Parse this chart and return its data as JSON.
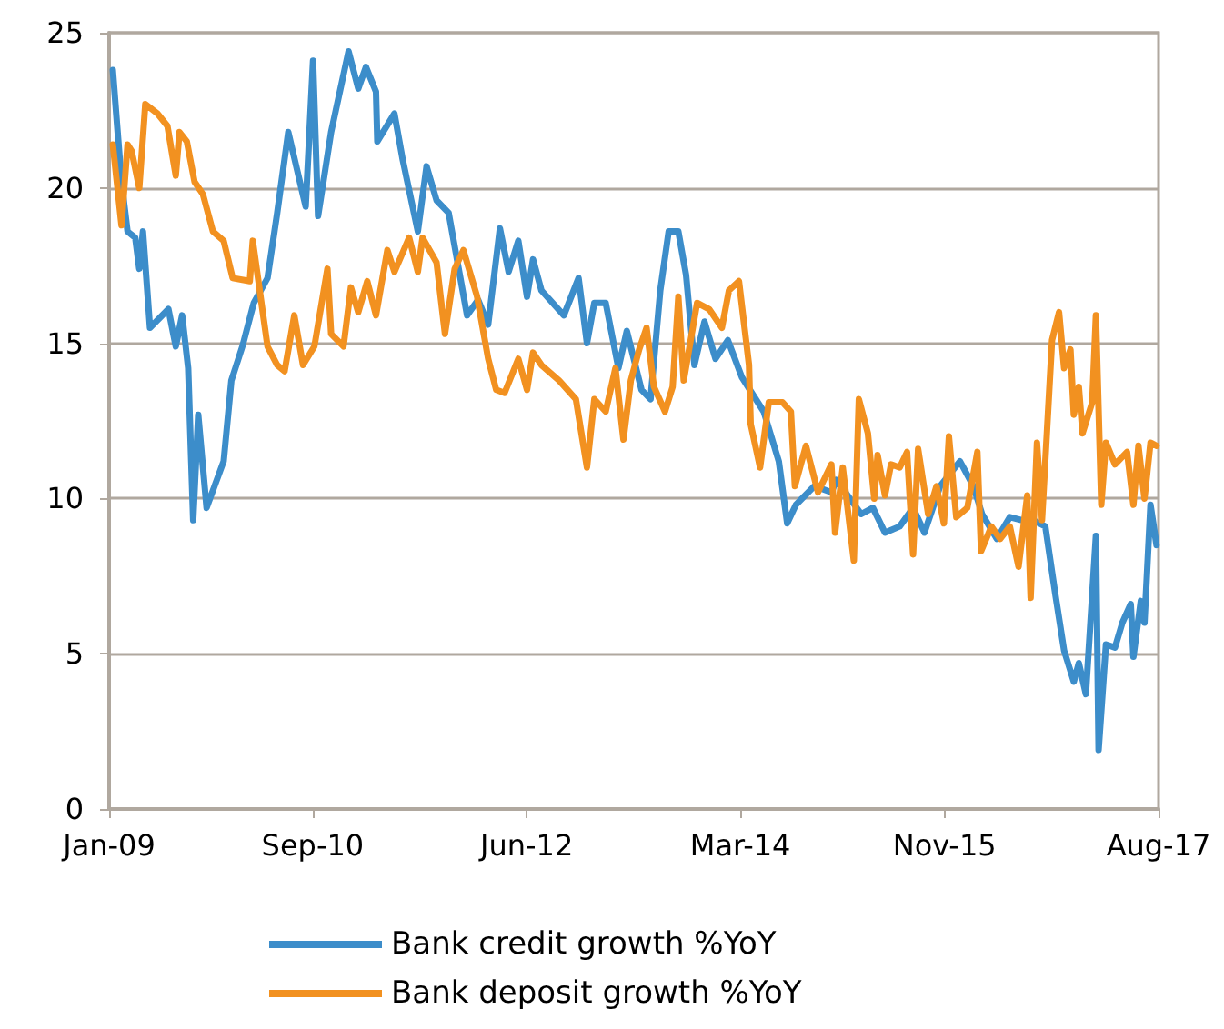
{
  "chart_data": {
    "type": "line",
    "xlim": [
      "2009-01-01",
      "2017-08-01"
    ],
    "xticks": [
      {
        "value": "2009-01-01",
        "label": "Jan-09"
      },
      {
        "value": "2010-09-01",
        "label": "Sep-10"
      },
      {
        "value": "2012-06-01",
        "label": "Jun-12"
      },
      {
        "value": "2014-03-01",
        "label": "Mar-14"
      },
      {
        "value": "2015-11-01",
        "label": "Nov-15"
      },
      {
        "value": "2017-08-01",
        "label": "Aug-17"
      }
    ],
    "ylim": [
      0,
      25
    ],
    "yticks": [
      0,
      5,
      10,
      15,
      20,
      25
    ],
    "grid": "y",
    "legend": "bottom",
    "series": [
      {
        "name": "Bank credit growth %YoY",
        "color": "#3c8dca",
        "x": [
          "2009-01-12",
          "2009-02-07",
          "2009-02-25",
          "2009-03-20",
          "2009-04-01",
          "2009-04-12",
          "2009-05-03",
          "2009-06-27",
          "2009-07-19",
          "2009-08-07",
          "2009-08-25",
          "2009-09-09",
          "2009-09-24",
          "2009-10-19",
          "2009-12-09",
          "2010-01-01",
          "2010-02-03",
          "2010-03-09",
          "2010-04-19",
          "2010-05-18",
          "2010-06-20",
          "2010-08-11",
          "2010-09-02",
          "2010-09-17",
          "2010-10-26",
          "2010-12-17",
          "2011-01-15",
          "2011-02-07",
          "2011-03-09",
          "2011-03-13",
          "2011-05-03",
          "2011-05-28",
          "2011-07-12",
          "2011-08-07",
          "2011-09-06",
          "2011-10-12",
          "2011-12-06",
          "2012-01-08",
          "2012-02-07",
          "2012-03-13",
          "2012-04-08",
          "2012-05-07",
          "2012-06-02",
          "2012-06-20",
          "2012-07-15",
          "2012-09-20",
          "2012-11-03",
          "2012-11-28",
          "2012-12-20",
          "2013-01-23",
          "2013-03-02",
          "2013-03-27",
          "2013-05-10",
          "2013-06-06",
          "2013-07-05",
          "2013-07-30",
          "2013-08-28",
          "2013-09-20",
          "2013-10-15",
          "2013-11-14",
          "2013-12-17",
          "2014-01-23",
          "2014-03-06",
          "2014-05-10",
          "2014-06-24",
          "2014-07-19",
          "2014-08-14",
          "2014-10-08",
          "2014-11-28",
          "2014-12-13",
          "2015-02-25",
          "2015-04-01",
          "2015-05-07",
          "2015-06-20",
          "2015-07-30",
          "2015-09-02",
          "2015-10-19",
          "2015-12-17",
          "2016-01-26",
          "2016-02-21",
          "2016-04-05",
          "2016-05-14",
          "2016-06-20",
          "2016-07-23",
          "2016-08-28",
          "2016-09-27",
          "2016-10-23",
          "2016-11-21",
          "2016-12-06",
          "2016-12-27",
          "2017-01-26",
          "2017-02-03",
          "2017-02-25",
          "2017-03-24",
          "2017-04-15",
          "2017-05-10",
          "2017-05-18",
          "2017-06-09",
          "2017-06-20",
          "2017-07-08",
          "2017-07-26"
        ],
        "values": [
          23.8,
          20.2,
          18.6,
          18.4,
          17.4,
          18.6,
          15.5,
          16.1,
          14.9,
          15.9,
          14.2,
          9.3,
          12.7,
          9.7,
          11.2,
          13.8,
          14.9,
          16.3,
          17.1,
          19.2,
          21.8,
          19.4,
          24.1,
          19.1,
          21.8,
          24.4,
          23.2,
          23.9,
          23.1,
          21.5,
          22.4,
          20.9,
          18.6,
          20.7,
          19.6,
          19.2,
          15.9,
          16.4,
          15.6,
          18.7,
          17.3,
          18.3,
          16.5,
          17.7,
          16.7,
          15.9,
          17.1,
          15.0,
          16.3,
          16.3,
          14.2,
          15.4,
          13.5,
          13.2,
          16.7,
          18.6,
          18.6,
          17.2,
          14.3,
          15.7,
          14.5,
          15.1,
          13.9,
          12.8,
          11.2,
          9.2,
          9.8,
          10.4,
          10.2,
          10.6,
          9.5,
          9.7,
          8.9,
          9.1,
          9.7,
          8.9,
          10.4,
          11.2,
          10.4,
          9.5,
          8.7,
          9.4,
          9.3,
          9.3,
          9.1,
          6.9,
          5.1,
          4.1,
          4.7,
          3.7,
          8.8,
          1.9,
          5.3,
          5.2,
          6.0,
          6.6,
          4.9,
          6.7,
          6.0,
          9.8,
          8.5
        ]
      },
      {
        "name": "Bank deposit growth %YoY",
        "color": "#f29120",
        "x": [
          "2009-01-12",
          "2009-02-07",
          "2009-02-25",
          "2009-03-09",
          "2009-04-01",
          "2009-04-19",
          "2009-05-25",
          "2009-06-24",
          "2009-07-19",
          "2009-07-30",
          "2009-08-21",
          "2009-09-13",
          "2009-10-08",
          "2009-11-07",
          "2009-12-09",
          "2010-01-05",
          "2010-02-25",
          "2010-03-06",
          "2010-04-19",
          "2010-05-18",
          "2010-06-09",
          "2010-07-08",
          "2010-08-03",
          "2010-09-06",
          "2010-10-15",
          "2010-10-26",
          "2010-12-02",
          "2010-12-24",
          "2011-01-15",
          "2011-02-11",
          "2011-03-09",
          "2011-04-12",
          "2011-05-03",
          "2011-06-16",
          "2011-07-12",
          "2011-07-26",
          "2011-09-06",
          "2011-10-01",
          "2011-10-30",
          "2011-11-25",
          "2012-01-05",
          "2012-02-07",
          "2012-03-02",
          "2012-03-27",
          "2012-05-07",
          "2012-06-02",
          "2012-06-20",
          "2012-07-15",
          "2012-09-06",
          "2012-10-26",
          "2012-11-28",
          "2012-12-20",
          "2013-01-23",
          "2013-02-21",
          "2013-03-17",
          "2013-04-08",
          "2013-05-03",
          "2013-05-25",
          "2013-06-16",
          "2013-07-19",
          "2013-08-11",
          "2013-08-28",
          "2013-09-13",
          "2013-10-23",
          "2013-11-28",
          "2014-01-05",
          "2014-01-26",
          "2014-02-25",
          "2014-03-27",
          "2014-04-01",
          "2014-04-29",
          "2014-05-25",
          "2014-07-05",
          "2014-07-30",
          "2014-08-11",
          "2014-09-13",
          "2014-10-19",
          "2014-11-28",
          "2014-12-09",
          "2015-01-01",
          "2015-02-03",
          "2015-02-18",
          "2015-03-17",
          "2015-04-05",
          "2015-04-15",
          "2015-05-07",
          "2015-05-25",
          "2015-06-20",
          "2015-07-12",
          "2015-07-30",
          "2015-08-14",
          "2015-09-13",
          "2015-10-08",
          "2015-10-30",
          "2015-11-14",
          "2015-12-06",
          "2016-01-08",
          "2016-02-07",
          "2016-02-18",
          "2016-03-20",
          "2016-04-15",
          "2016-05-14",
          "2016-06-09",
          "2016-07-05",
          "2016-07-15",
          "2016-08-03",
          "2016-08-18",
          "2016-09-17",
          "2016-10-08",
          "2016-10-23",
          "2016-11-11",
          "2016-11-21",
          "2016-12-06",
          "2016-12-17",
          "2017-01-15",
          "2017-01-26",
          "2017-02-11",
          "2017-02-25",
          "2017-03-24",
          "2017-04-29",
          "2017-05-18",
          "2017-06-02",
          "2017-06-20",
          "2017-07-08",
          "2017-07-26"
        ],
        "values": [
          21.4,
          18.8,
          21.4,
          21.2,
          20.0,
          22.7,
          22.4,
          22.0,
          20.4,
          21.8,
          21.5,
          20.2,
          19.8,
          18.6,
          18.3,
          17.1,
          17.0,
          18.3,
          14.9,
          14.3,
          14.1,
          15.9,
          14.3,
          14.9,
          17.4,
          15.3,
          14.9,
          16.8,
          16.0,
          17.0,
          15.9,
          18.0,
          17.3,
          18.4,
          17.3,
          18.4,
          17.6,
          15.3,
          17.4,
          18.0,
          16.5,
          14.5,
          13.5,
          13.4,
          14.5,
          13.5,
          14.7,
          14.3,
          13.8,
          13.2,
          11.0,
          13.2,
          12.8,
          14.2,
          11.9,
          13.8,
          14.8,
          15.5,
          13.6,
          12.8,
          13.6,
          16.5,
          13.8,
          16.3,
          16.1,
          15.5,
          16.7,
          17.0,
          14.3,
          12.4,
          11.0,
          13.1,
          13.1,
          12.8,
          10.4,
          11.7,
          10.2,
          11.1,
          8.9,
          11.0,
          8.0,
          13.2,
          12.1,
          10.0,
          11.4,
          10.1,
          11.1,
          11.0,
          11.5,
          8.2,
          11.6,
          9.5,
          10.4,
          9.2,
          12.0,
          9.4,
          9.7,
          11.5,
          8.3,
          9.1,
          8.7,
          9.1,
          7.8,
          10.1,
          6.8,
          11.8,
          9.3,
          15.1,
          16.0,
          14.2,
          14.8,
          12.7,
          13.6,
          12.1,
          13.1,
          15.9,
          9.8,
          11.8,
          11.1,
          11.5,
          9.8,
          11.7,
          10.0,
          11.8,
          11.7
        ]
      }
    ]
  }
}
